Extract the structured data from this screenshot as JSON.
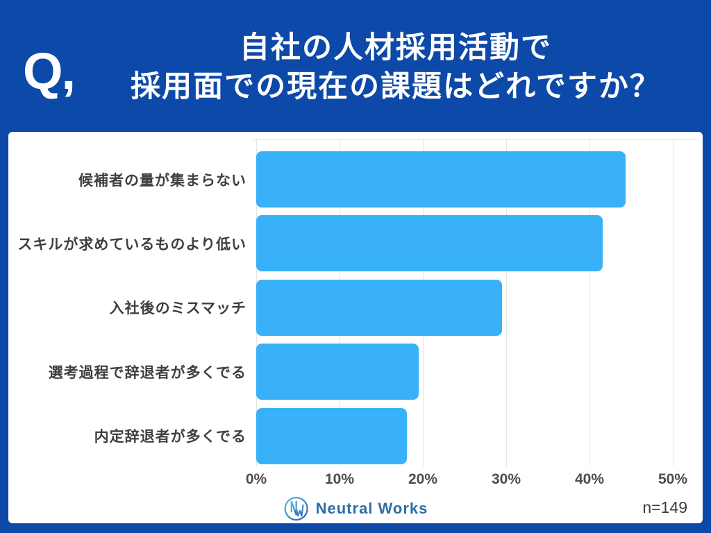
{
  "header": {
    "q_mark": "Q,",
    "title_line1": "自社の人材採用活動で",
    "title_line2": "採用面での現在の課題はどれですか？"
  },
  "chart_data": {
    "type": "bar",
    "orientation": "horizontal",
    "title": "自社の人材採用活動で採用面での現在の課題はどれですか？",
    "categories": [
      "候補者の量が集まらない",
      "スキルが求めているものより低い",
      "入社後のミスマッチ",
      "選考過程で辞退者が多くでる",
      "内定辞退者が多くでる"
    ],
    "values": [
      44.3,
      41.6,
      29.5,
      19.5,
      18.1
    ],
    "unit": "%",
    "xlim": [
      0,
      50
    ],
    "xticks": [
      "0%",
      "10%",
      "20%",
      "30%",
      "40%",
      "50%"
    ],
    "grid": true,
    "legend": "none",
    "bar_color": "#38b1f8"
  },
  "footer": {
    "brand": "Neutral Works",
    "sample_size": "n=149"
  },
  "colors": {
    "header_background": "#0d49a8",
    "bar_fill": "#38b1f8",
    "card_background": "#ffffff",
    "gridline": "#e4e4e4",
    "category_text": "#3f3f3f",
    "tick_text": "#4c4c4c",
    "brand_text": "#2e6da4",
    "sample_text": "#3d3d3d"
  }
}
